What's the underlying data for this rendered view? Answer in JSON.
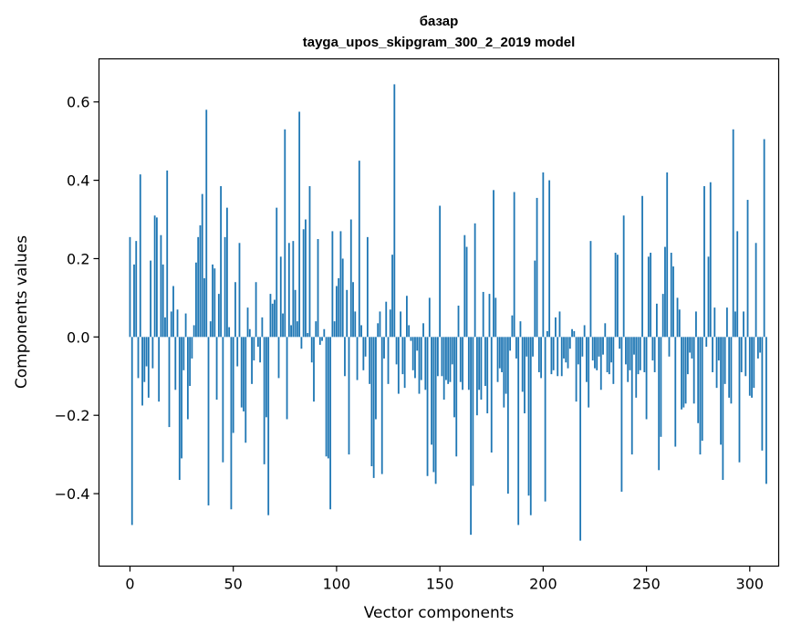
{
  "chart_data": {
    "type": "bar",
    "title": "базар",
    "subtitle": "tayga_upos_skipgram_300_2_2019 model",
    "xlabel": "Vector components",
    "ylabel": "Components values",
    "xlim": [
      -15,
      314
    ],
    "ylim": [
      -0.585,
      0.71
    ],
    "xticks": [
      0,
      50,
      100,
      150,
      200,
      250,
      300
    ],
    "yticks": [
      -0.4,
      -0.2,
      0.0,
      0.2,
      0.4,
      0.6
    ],
    "ytick_labels": [
      "−0.4",
      "−0.2",
      "0.0",
      "0.2",
      "0.4",
      "0.6"
    ],
    "bar_color": "#1f77b4",
    "grid": false,
    "values": [
      0.255,
      -0.48,
      0.185,
      0.245,
      -0.105,
      0.415,
      -0.175,
      -0.115,
      -0.075,
      -0.155,
      0.195,
      -0.08,
      0.31,
      0.305,
      -0.165,
      0.26,
      0.185,
      0.05,
      0.425,
      -0.23,
      0.065,
      0.13,
      -0.135,
      0.07,
      -0.365,
      -0.31,
      -0.085,
      0.06,
      -0.21,
      -0.125,
      -0.055,
      0.03,
      0.19,
      0.255,
      0.285,
      0.365,
      0.15,
      0.58,
      -0.43,
      0.04,
      0.185,
      0.175,
      -0.16,
      0.11,
      0.385,
      -0.32,
      0.255,
      0.33,
      0.025,
      -0.44,
      -0.245,
      0.14,
      -0.075,
      0.24,
      -0.18,
      -0.19,
      -0.27,
      0.075,
      0.02,
      -0.12,
      -0.06,
      0.14,
      -0.025,
      -0.065,
      0.05,
      -0.325,
      -0.205,
      -0.455,
      0.11,
      0.085,
      0.095,
      0.33,
      -0.105,
      0.205,
      0.06,
      0.53,
      -0.21,
      0.24,
      0.03,
      0.245,
      0.12,
      0.04,
      0.575,
      -0.03,
      0.275,
      0.3,
      0.01,
      0.385,
      -0.065,
      -0.165,
      0.04,
      0.25,
      -0.02,
      -0.01,
      0.02,
      -0.305,
      -0.31,
      -0.44,
      0.27,
      0.04,
      0.13,
      0.15,
      0.27,
      0.2,
      -0.1,
      0.12,
      -0.3,
      0.3,
      0.14,
      0.065,
      -0.11,
      0.45,
      0.03,
      -0.085,
      -0.05,
      0.255,
      -0.12,
      -0.33,
      -0.36,
      -0.21,
      0.035,
      0.065,
      -0.35,
      -0.055,
      0.09,
      -0.12,
      0.07,
      0.21,
      0.645,
      -0.07,
      -0.145,
      0.065,
      -0.095,
      -0.13,
      0.105,
      0.03,
      -0.01,
      -0.085,
      -0.105,
      -0.035,
      -0.145,
      -0.11,
      0.035,
      -0.135,
      -0.355,
      0.1,
      -0.275,
      -0.345,
      -0.375,
      -0.1,
      0.335,
      -0.1,
      -0.16,
      -0.11,
      -0.12,
      -0.115,
      -0.07,
      -0.205,
      -0.305,
      0.08,
      -0.115,
      -0.135,
      0.26,
      0.23,
      -0.135,
      -0.505,
      -0.38,
      0.29,
      -0.2,
      -0.135,
      -0.16,
      0.115,
      -0.125,
      -0.195,
      0.11,
      -0.295,
      0.375,
      0.1,
      -0.115,
      -0.08,
      -0.09,
      -0.18,
      -0.145,
      -0.4,
      -0.035,
      0.055,
      0.37,
      -0.055,
      -0.48,
      0.04,
      -0.14,
      -0.195,
      -0.05,
      -0.405,
      -0.455,
      -0.05,
      0.195,
      0.355,
      -0.09,
      -0.105,
      0.42,
      -0.42,
      0.015,
      0.4,
      -0.095,
      -0.085,
      0.05,
      -0.1,
      0.065,
      -0.1,
      -0.055,
      -0.065,
      -0.08,
      -0.03,
      0.02,
      0.015,
      -0.165,
      -0.07,
      -0.52,
      -0.05,
      0.03,
      -0.115,
      -0.18,
      0.245,
      -0.06,
      -0.08,
      -0.085,
      -0.05,
      -0.135,
      -0.045,
      0.035,
      -0.09,
      -0.095,
      -0.065,
      -0.12,
      0.215,
      0.21,
      -0.03,
      -0.395,
      0.31,
      -0.07,
      -0.115,
      -0.085,
      -0.3,
      -0.045,
      -0.155,
      -0.095,
      -0.085,
      0.36,
      -0.09,
      -0.21,
      0.205,
      0.215,
      -0.06,
      -0.09,
      0.085,
      -0.34,
      -0.255,
      0.11,
      0.23,
      0.42,
      -0.05,
      0.215,
      0.18,
      -0.28,
      0.1,
      0.07,
      -0.185,
      -0.18,
      -0.17,
      -0.095,
      -0.04,
      -0.055,
      -0.17,
      0.065,
      -0.22,
      -0.3,
      -0.265,
      0.385,
      -0.025,
      0.205,
      0.395,
      -0.09,
      0.075,
      -0.13,
      -0.06,
      -0.275,
      -0.365,
      -0.12,
      0.075,
      -0.155,
      -0.17,
      0.53,
      0.065,
      0.27,
      -0.32,
      -0.09,
      0.065,
      -0.1,
      0.35,
      -0.15,
      -0.155,
      -0.13,
      0.24,
      -0.055,
      -0.04,
      -0.29,
      0.505,
      -0.375
    ]
  }
}
